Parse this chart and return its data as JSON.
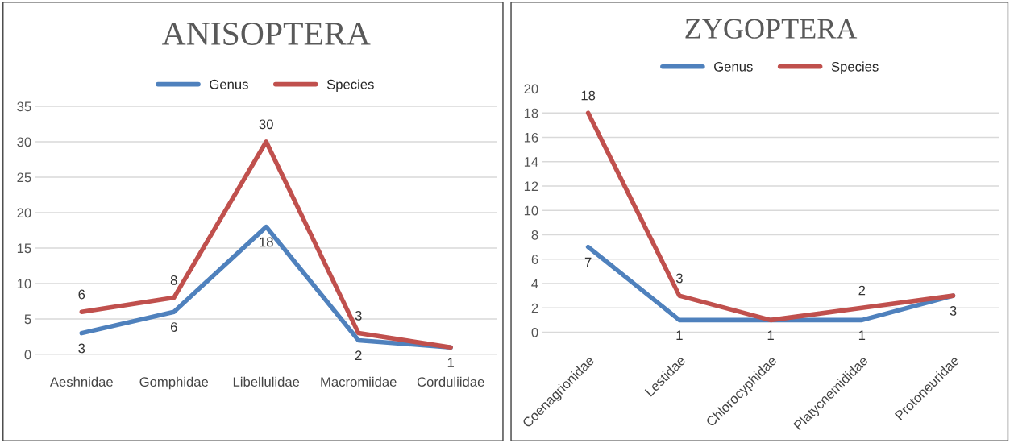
{
  "chart_data": [
    {
      "type": "line",
      "title": "ANISOPTERA",
      "categories": [
        "Aeshnidae",
        "Gomphidae",
        "Libellulidae",
        "Macromiidae",
        "Corduliidae"
      ],
      "series": [
        {
          "name": "Genus",
          "color": "#4f81bd",
          "values": [
            3,
            6,
            18,
            2,
            1
          ],
          "value_labels": [
            "3",
            "6",
            "18",
            "2",
            "1"
          ]
        },
        {
          "name": "Species",
          "color": "#c0504d",
          "values": [
            6,
            8,
            30,
            3,
            1
          ],
          "value_labels": [
            "6",
            "8",
            "30",
            "3",
            null
          ]
        }
      ],
      "ylim": [
        0,
        35
      ],
      "yticks": [
        0,
        5,
        10,
        15,
        20,
        25,
        30,
        35
      ],
      "grid": "y",
      "legend": "top",
      "marker": "none",
      "line_style": "solid"
    },
    {
      "type": "line",
      "title": "ZYGOPTERA",
      "categories": [
        "Coenagrionidae",
        "Lestidae",
        "Chlorocyphidae",
        "Platycnemididae",
        "Protoneuridae"
      ],
      "series": [
        {
          "name": "Genus",
          "color": "#4f81bd",
          "values": [
            7,
            1,
            1,
            1,
            3
          ],
          "value_labels": [
            "7",
            "1",
            "1",
            "1",
            "3"
          ]
        },
        {
          "name": "Species",
          "color": "#c0504d",
          "values": [
            18,
            3,
            1,
            2,
            3
          ],
          "value_labels": [
            "18",
            "3",
            null,
            "2",
            null
          ]
        }
      ],
      "ylim": [
        0,
        20
      ],
      "yticks": [
        0,
        2,
        4,
        6,
        8,
        10,
        12,
        14,
        16,
        18,
        20
      ],
      "grid": "y",
      "legend": "top",
      "marker": "none",
      "line_style": "solid"
    }
  ]
}
